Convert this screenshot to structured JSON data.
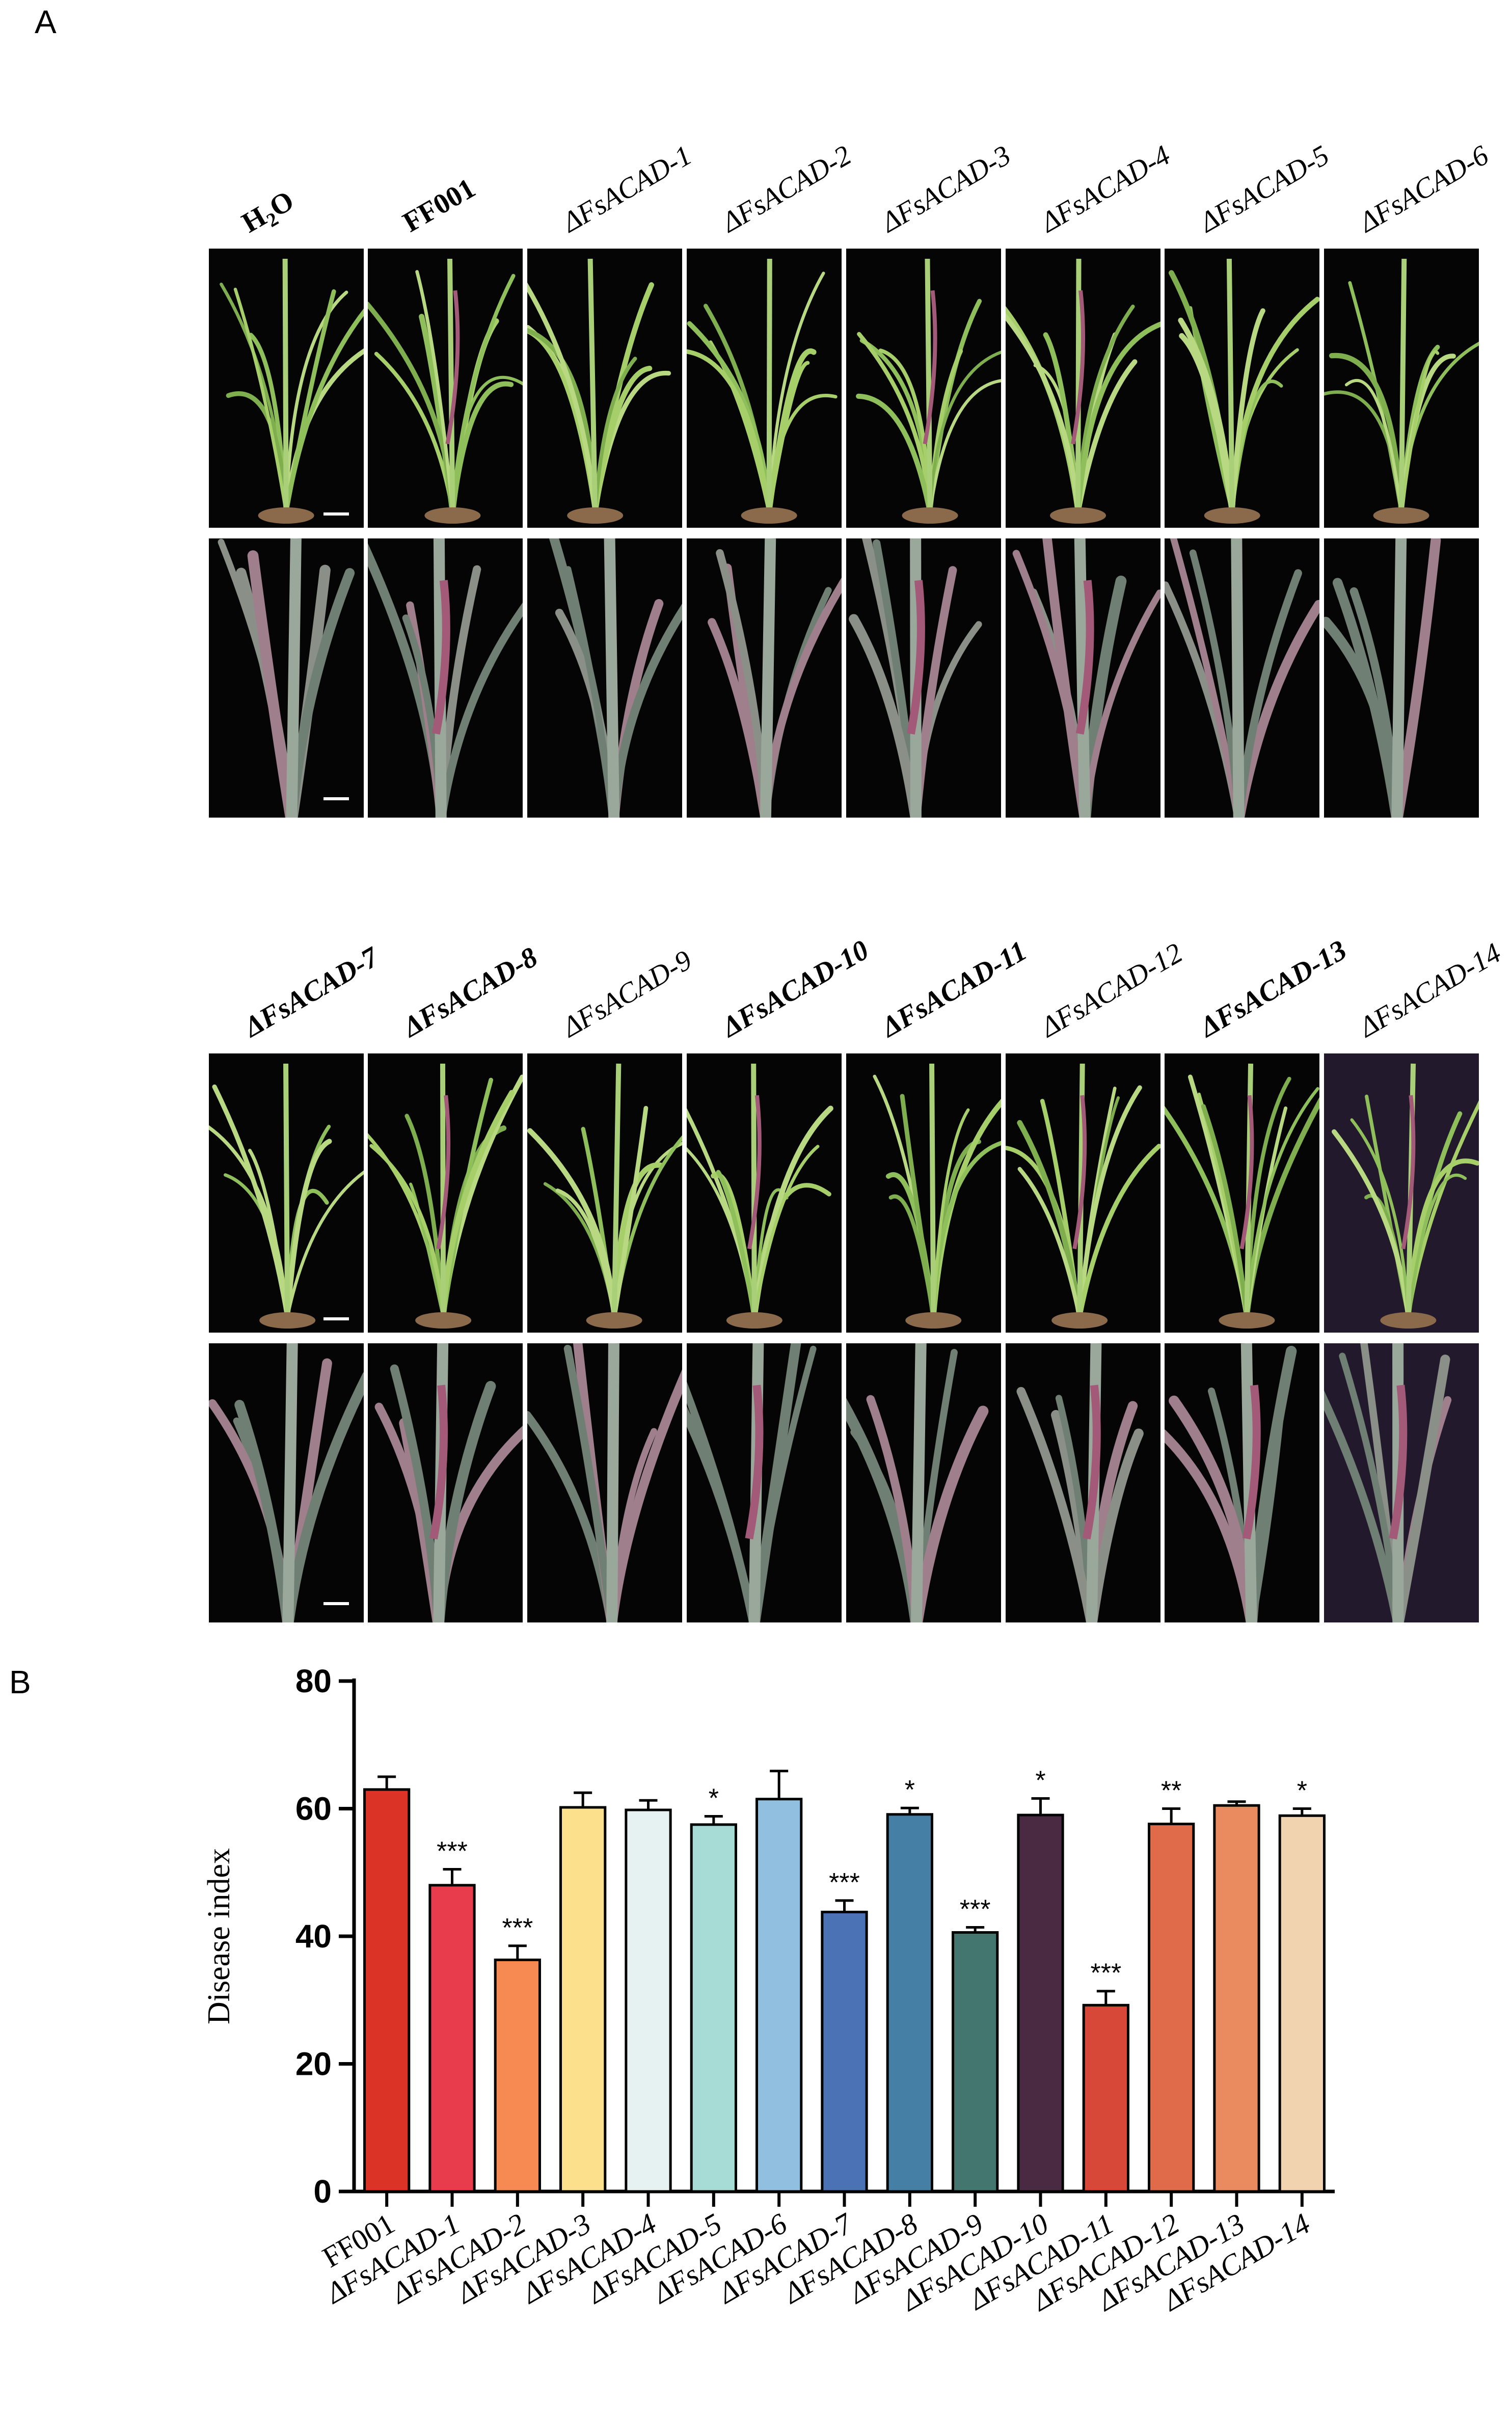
{
  "panels": {
    "a_letter": "A",
    "b_letter": "B"
  },
  "photo_rows": [
    {
      "labels": [
        {
          "main": "H",
          "sub": "2",
          "tail": "O",
          "style": "bold"
        },
        {
          "main": "FF001",
          "sub": "",
          "tail": "",
          "style": "bold"
        },
        {
          "main": "ΔFsACAD-1",
          "sub": "",
          "tail": "",
          "style": "ital"
        },
        {
          "main": "ΔFsACAD-2",
          "sub": "",
          "tail": "",
          "style": "ital"
        },
        {
          "main": "ΔFsACAD-3",
          "sub": "",
          "tail": "",
          "style": "ital"
        },
        {
          "main": "ΔFsACAD-4",
          "sub": "",
          "tail": "",
          "style": "ital"
        },
        {
          "main": "ΔFsACAD-5",
          "sub": "",
          "tail": "",
          "style": "ital"
        },
        {
          "main": "ΔFsACAD-6",
          "sub": "",
          "tail": "",
          "style": "ital"
        }
      ]
    },
    {
      "labels": [
        {
          "main": "ΔFsACAD-7",
          "sub": "",
          "tail": "",
          "style": "bold ital"
        },
        {
          "main": "ΔFsACAD-8",
          "sub": "",
          "tail": "",
          "style": "bold ital"
        },
        {
          "main": "ΔFsACAD-9",
          "sub": "",
          "tail": "",
          "style": "ital"
        },
        {
          "main": "ΔFsACAD-10",
          "sub": "",
          "tail": "",
          "style": "bold ital"
        },
        {
          "main": "ΔFsACAD-11",
          "sub": "",
          "tail": "",
          "style": "bold ital"
        },
        {
          "main": "ΔFsACAD-12",
          "sub": "",
          "tail": "",
          "style": "ital"
        },
        {
          "main": "ΔFsACAD-13",
          "sub": "",
          "tail": "",
          "style": "bold ital"
        },
        {
          "main": "ΔFsACAD-14",
          "sub": "",
          "tail": "",
          "style": "ital"
        }
      ]
    }
  ],
  "chart_data": {
    "type": "bar",
    "title": "",
    "xlabel": "",
    "ylabel": "Disease index",
    "ylim": [
      0,
      80
    ],
    "yticks": [
      0,
      20,
      40,
      60,
      80
    ],
    "grid": false,
    "categories": [
      "FF001",
      "ΔFsACAD-1",
      "ΔFsACAD-2",
      "ΔFsACAD-3",
      "ΔFsACAD-4",
      "ΔFsACAD-5",
      "ΔFsACAD-6",
      "ΔFsACAD-7",
      "ΔFsACAD-8",
      "ΔFsACAD-9",
      "ΔFsACAD-10",
      "ΔFsACAD-11",
      "ΔFsACAD-12",
      "ΔFsACAD-13",
      "ΔFsACAD-14"
    ],
    "values": [
      63,
      48,
      36.3,
      60.2,
      59.8,
      57.5,
      61.5,
      43.8,
      59.1,
      40.6,
      59,
      29.2,
      57.6,
      60.5,
      58.9
    ],
    "errors": [
      2.0,
      2.5,
      2.2,
      2.3,
      1.5,
      1.3,
      4.4,
      1.8,
      1.0,
      0.8,
      2.6,
      2.2,
      2.4,
      0.6,
      1.1
    ],
    "significance": [
      "",
      "***",
      "***",
      "",
      "",
      "*",
      "",
      "***",
      "*",
      "***",
      "*",
      "***",
      "**",
      "",
      "*"
    ],
    "colors": [
      "#dc3327",
      "#e83c4c",
      "#f78a52",
      "#fde08c",
      "#e6f2f2",
      "#a6dbd6",
      "#90bfe0",
      "#4a72b4",
      "#457fa6",
      "#42766f",
      "#4a2a42",
      "#d84838",
      "#e06b4b",
      "#ea8a5f",
      "#f1d3b0"
    ]
  }
}
